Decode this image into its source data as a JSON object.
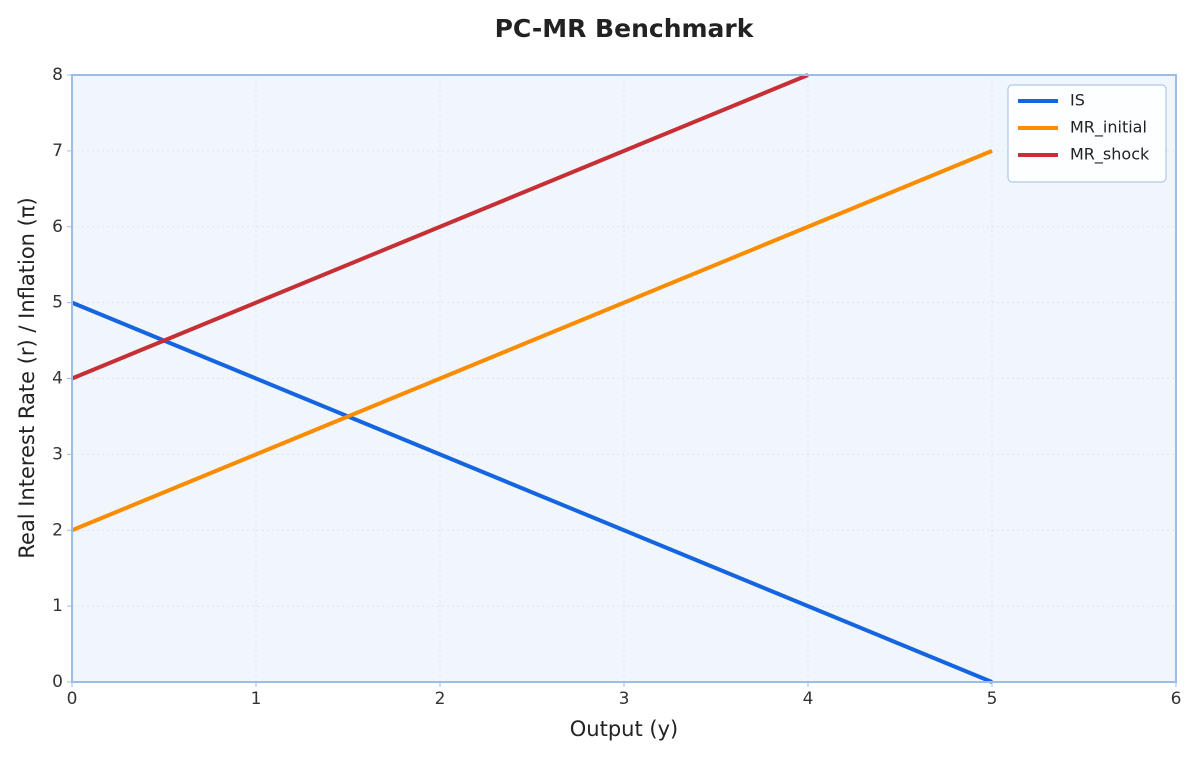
{
  "chart_data": {
    "type": "line",
    "title": "PC-MR Benchmark",
    "x_label": "Output (y)",
    "y_label": "Real Interest Rate (r) / Inflation (π)",
    "x": [
      0,
      1,
      2,
      3,
      4,
      5
    ],
    "series": [
      {
        "name": "IS",
        "color": "#1565e0",
        "values": [
          5,
          4,
          3,
          2,
          1,
          0
        ]
      },
      {
        "name": "MR_initial",
        "color": "#fb8c00",
        "values": [
          2,
          3,
          4,
          5,
          6,
          7
        ]
      },
      {
        "name": "MR_shock",
        "color": "#c62f36",
        "values": [
          4,
          5,
          6,
          7,
          8,
          null
        ]
      }
    ],
    "xlim": [
      0,
      6
    ],
    "xticks": [
      0,
      1,
      2,
      3,
      4,
      5,
      6
    ],
    "ylim": [
      0,
      8
    ],
    "yticks": [
      0,
      1,
      2,
      3,
      4,
      5,
      6,
      7,
      8
    ],
    "grid": true,
    "legend": "upper right"
  }
}
